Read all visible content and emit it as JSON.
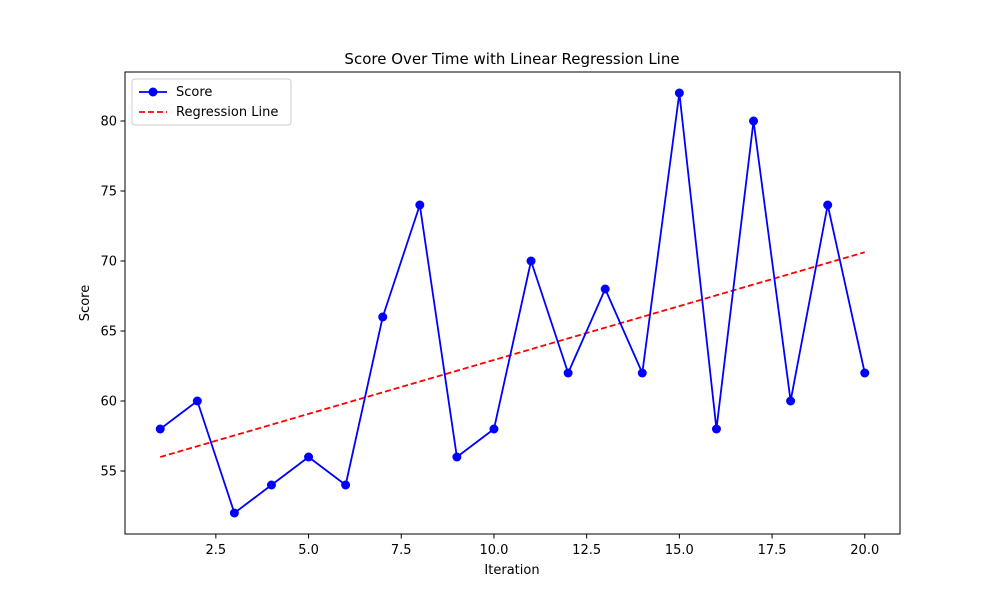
{
  "chart_data": {
    "type": "line",
    "title": "Score Over Time with Linear Regression Line",
    "xlabel": "Iteration",
    "ylabel": "Score",
    "xlim": [
      0.05,
      20.95
    ],
    "ylim": [
      50.5,
      83.5
    ],
    "xticks": [
      2.5,
      5.0,
      7.5,
      10.0,
      12.5,
      15.0,
      17.5,
      20.0
    ],
    "xtick_labels": [
      "2.5",
      "5.0",
      "7.5",
      "10.0",
      "12.5",
      "15.0",
      "17.5",
      "20.0"
    ],
    "yticks": [
      55,
      60,
      65,
      70,
      75,
      80
    ],
    "ytick_labels": [
      "55",
      "60",
      "65",
      "70",
      "75",
      "80"
    ],
    "grid": false,
    "legend_position": "top-left",
    "x": [
      1,
      2,
      3,
      4,
      5,
      6,
      7,
      8,
      9,
      10,
      11,
      12,
      13,
      14,
      15,
      16,
      17,
      18,
      19,
      20
    ],
    "series": [
      {
        "name": "Score",
        "style": "solid-with-circle-markers",
        "color": "#0000ff",
        "values": [
          58,
          60,
          52,
          54,
          56,
          54,
          66,
          74,
          56,
          58,
          70,
          62,
          68,
          62,
          82,
          58,
          80,
          60,
          74,
          62
        ]
      },
      {
        "name": "Regression Line",
        "style": "dashed",
        "color": "#ff0000",
        "values": [
          56.0,
          56.77,
          57.54,
          58.31,
          59.08,
          59.85,
          60.62,
          61.39,
          62.16,
          62.93,
          63.7,
          64.47,
          65.24,
          66.01,
          66.78,
          67.55,
          68.32,
          69.09,
          69.86,
          70.63
        ]
      }
    ]
  }
}
